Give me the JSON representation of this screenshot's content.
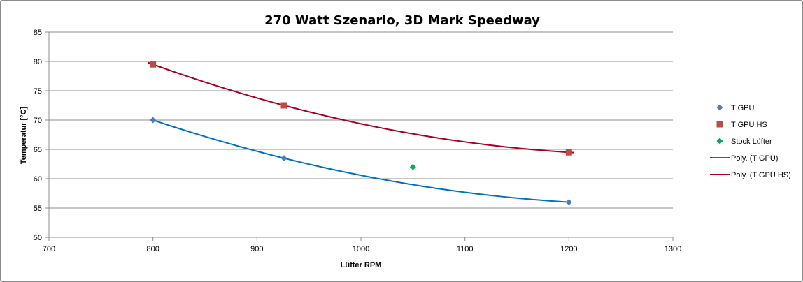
{
  "chart_data": {
    "type": "scatter",
    "title": "270 Watt Szenario, 3D Mark Speedway",
    "xlabel": "Lüfter RPM",
    "ylabel": "Temperatur [°C]",
    "xlim": [
      700,
      1300
    ],
    "ylim": [
      50,
      85
    ],
    "xticks": [
      700,
      800,
      900,
      1000,
      1100,
      1200,
      1300
    ],
    "yticks": [
      50,
      55,
      60,
      65,
      70,
      75,
      80,
      85
    ],
    "grid": true,
    "legend_position": "right",
    "series": [
      {
        "name": "T GPU",
        "kind": "points",
        "marker": "diamond",
        "color": "#4a7ebb",
        "x": [
          800,
          926,
          1200
        ],
        "y": [
          70,
          63.5,
          56
        ]
      },
      {
        "name": "T GPU HS",
        "kind": "points",
        "marker": "square",
        "color": "#be4b48",
        "x": [
          800,
          926,
          1200
        ],
        "y": [
          79.5,
          72.5,
          64.5
        ]
      },
      {
        "name": "Stock Lüfter",
        "kind": "points",
        "marker": "diamond",
        "color": "#00b050",
        "x": [
          1050
        ],
        "y": [
          62
        ]
      },
      {
        "name": "Poly. (T GPU)",
        "kind": "trendline",
        "color": "#0070c0",
        "x": [
          800,
          1200
        ],
        "fit_points": {
          "x": [
            800,
            926,
            1200
          ],
          "y": [
            70,
            63.5,
            56
          ]
        }
      },
      {
        "name": "Poly. (T GPU HS)",
        "kind": "trendline",
        "color": "#a50021",
        "x": [
          795,
          1205
        ],
        "fit_points": {
          "x": [
            800,
            926,
            1200
          ],
          "y": [
            79.5,
            72.5,
            64.5
          ]
        }
      }
    ]
  }
}
